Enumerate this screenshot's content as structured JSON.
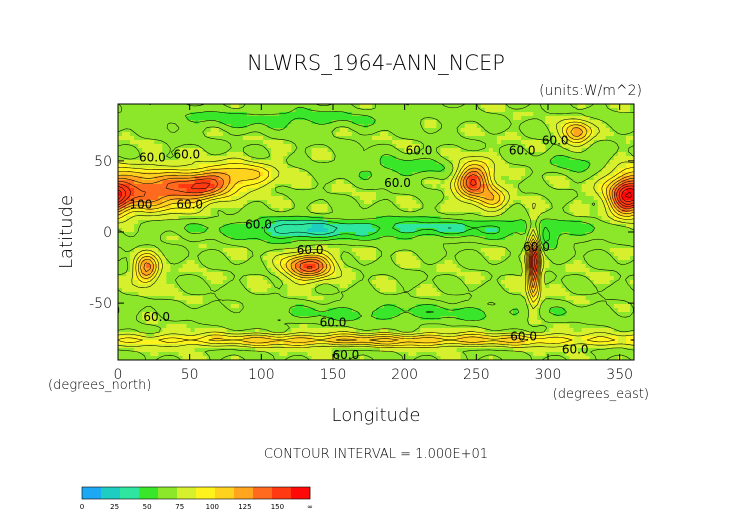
{
  "chart_data": {
    "type": "heatmap",
    "title": "NLWRS_1964-ANN_NCEP",
    "units": "(units:W/m^2)",
    "xlabel": "Longitude",
    "ylabel": "Latitude",
    "x_unit_label": "(degrees_east)",
    "y_unit_label": "(degrees_north)",
    "xlim": [
      0,
      360
    ],
    "ylim": [
      -90,
      90
    ],
    "x_ticks": [
      0,
      50,
      100,
      150,
      200,
      250,
      300,
      350
    ],
    "y_ticks": [
      -50,
      0,
      50
    ],
    "contour_interval_text": "CONTOUR INTERVAL = 1.000E+01",
    "contour_labels": [
      {
        "text": "60.0",
        "lon": 24,
        "lat": 52
      },
      {
        "text": "60.0",
        "lon": 48,
        "lat": 54
      },
      {
        "text": "100",
        "lon": 16,
        "lat": 19
      },
      {
        "text": "60.0",
        "lon": 50,
        "lat": 19
      },
      {
        "text": "60.0",
        "lon": 98,
        "lat": 5
      },
      {
        "text": "60.0",
        "lon": 210,
        "lat": 57
      },
      {
        "text": "60.0",
        "lon": 195,
        "lat": 34
      },
      {
        "text": "60.0",
        "lon": 282,
        "lat": 57
      },
      {
        "text": "60.0",
        "lon": 305,
        "lat": 64
      },
      {
        "text": "60.0",
        "lon": 134,
        "lat": -13
      },
      {
        "text": "60.0",
        "lon": 292,
        "lat": -11
      },
      {
        "text": "60.0",
        "lon": 27,
        "lat": -60
      },
      {
        "text": "60.0",
        "lon": 150,
        "lat": -64
      },
      {
        "text": "60.0",
        "lon": 283,
        "lat": -74
      },
      {
        "text": "60.0",
        "lon": 159,
        "lat": -87
      },
      {
        "text": "60.0",
        "lon": 319,
        "lat": -83
      }
    ],
    "colorbar": {
      "tick_labels": [
        "0",
        "25",
        "50",
        "75",
        "100",
        "125",
        "150",
        "∞"
      ],
      "colors": [
        "#1ca8f2",
        "#1ecdc2",
        "#2ee6a0",
        "#39e62a",
        "#8ce62a",
        "#d6f02e",
        "#fff31e",
        "#ffd21e",
        "#ffa51e",
        "#ff6a1e",
        "#ff3a12",
        "#ff0808"
      ],
      "bounds": [
        0,
        15,
        25,
        38,
        50,
        62,
        75,
        87,
        100,
        112,
        125,
        150,
        175
      ]
    },
    "background_value": 60,
    "features": [
      {
        "name": "north-africa-max",
        "lon": 20,
        "lat": 29,
        "rlon": 30,
        "rlat": 14,
        "value": 120
      },
      {
        "name": "arabia-max",
        "lon": 58,
        "lat": 32,
        "rlon": 20,
        "rlat": 10,
        "value": 115
      },
      {
        "name": "central-asia",
        "lon": 85,
        "lat": 40,
        "rlon": 25,
        "rlat": 9,
        "value": 95
      },
      {
        "name": "north-america-west-max",
        "lon": 248,
        "lat": 36,
        "rlon": 12,
        "rlat": 13,
        "value": 130
      },
      {
        "name": "mexico",
        "lon": 262,
        "lat": 23,
        "rlon": 10,
        "rlat": 8,
        "value": 90
      },
      {
        "name": "sahara-east-edge",
        "lon": 355,
        "lat": 25,
        "rlon": 12,
        "rlat": 14,
        "value": 130
      },
      {
        "name": "europe-high",
        "lon": 320,
        "lat": 70,
        "rlon": 10,
        "rlat": 8,
        "value": 110
      },
      {
        "name": "south-africa",
        "lon": 20,
        "lat": -26,
        "rlon": 8,
        "rlat": 10,
        "value": 115
      },
      {
        "name": "australia-max",
        "lon": 133,
        "lat": -24,
        "rlon": 16,
        "rlat": 9,
        "value": 130
      },
      {
        "name": "andes-strip",
        "lon": 290,
        "lat": -22,
        "rlon": 4,
        "rlat": 24,
        "value": 145
      },
      {
        "name": "antarctic-coast",
        "lon": 180,
        "lat": -76,
        "rlon": 200,
        "rlat": 4,
        "value": 100
      },
      {
        "name": "equatorial-low",
        "lon": 200,
        "lat": 3,
        "rlon": 140,
        "rlat": 7,
        "value": 35
      },
      {
        "name": "arctic-low",
        "lon": 110,
        "lat": 80,
        "rlon": 90,
        "rlat": 7,
        "value": 45
      },
      {
        "name": "north-pacific-low",
        "lon": 200,
        "lat": 45,
        "rlon": 40,
        "rlat": 8,
        "value": 45
      },
      {
        "name": "north-atlantic-low",
        "lon": 320,
        "lat": 50,
        "rlon": 20,
        "rlat": 8,
        "value": 45
      },
      {
        "name": "southern-ocean-low",
        "lon": 200,
        "lat": -57,
        "rlon": 120,
        "rlat": 6,
        "value": 45
      },
      {
        "name": "indonesia-low",
        "lon": 125,
        "lat": 0,
        "rlon": 30,
        "rlat": 8,
        "value": 40
      },
      {
        "name": "amazon-low",
        "lon": 298,
        "lat": -5,
        "rlon": 12,
        "rlat": 7,
        "value": 40
      }
    ]
  }
}
